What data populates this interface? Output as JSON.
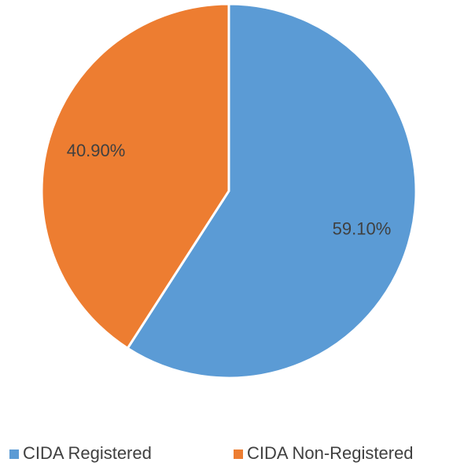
{
  "chart_data": {
    "type": "pie",
    "categories": [
      "CIDA Registered",
      "CIDA Non-Registered"
    ],
    "values": [
      59.1,
      40.9
    ],
    "value_labels": [
      "59.10%",
      "40.90%"
    ],
    "colors": [
      "#5b9bd5",
      "#ed7d31"
    ],
    "legend": "bottom"
  }
}
